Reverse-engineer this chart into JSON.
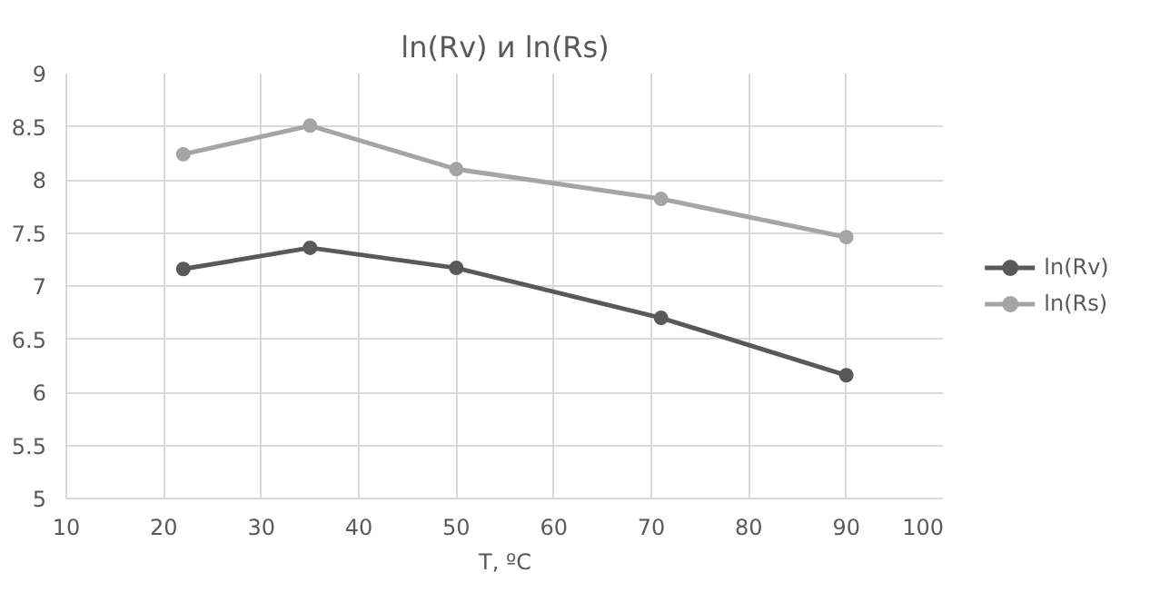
{
  "chart_data": {
    "type": "line",
    "title": "ln(Rv) и ln(Rs)",
    "xlabel": "T, ºC",
    "x": [
      22,
      35,
      50,
      71,
      90
    ],
    "series": [
      {
        "name": "ln(Rv)",
        "color": "#595959",
        "values": [
          7.16,
          7.36,
          7.17,
          6.7,
          6.16
        ]
      },
      {
        "name": "ln(Rs)",
        "color": "#a5a5a5",
        "values": [
          8.24,
          8.51,
          8.1,
          7.82,
          7.46
        ]
      }
    ],
    "xlim": [
      10,
      100
    ],
    "xticks": [
      10,
      20,
      30,
      40,
      50,
      60,
      70,
      80,
      90,
      100
    ],
    "ylim": [
      5,
      9
    ],
    "yticks": [
      5,
      5.5,
      6,
      6.5,
      7,
      7.5,
      8,
      8.5,
      9
    ],
    "grid": true,
    "legend": "right",
    "marker": "circle",
    "line_style": "solid"
  }
}
